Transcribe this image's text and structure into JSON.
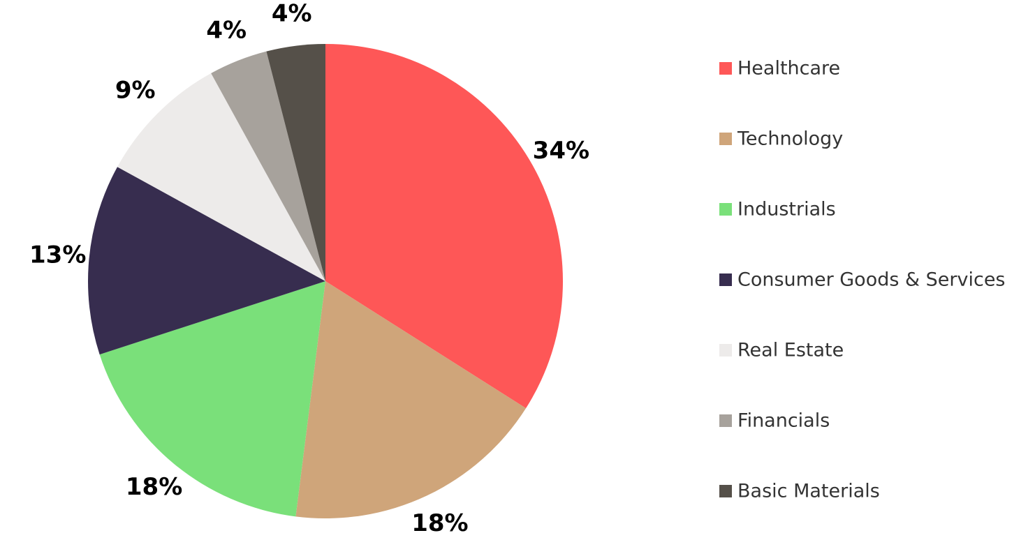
{
  "chart_data": {
    "type": "pie",
    "categories": [
      "Healthcare",
      "Technology",
      "Industrials",
      "Consumer Goods & Services",
      "Real Estate",
      "Financials",
      "Basic Materials"
    ],
    "values": [
      34,
      18,
      18,
      13,
      9,
      4,
      4
    ],
    "value_labels": [
      "34%",
      "18%",
      "18%",
      "13%",
      "9%",
      "4%",
      "4%"
    ],
    "colors": [
      "#fe5757",
      "#cfa57a",
      "#7ae07a",
      "#372d4f",
      "#edebea",
      "#a7a29c",
      "#555049"
    ],
    "legend": "right"
  }
}
